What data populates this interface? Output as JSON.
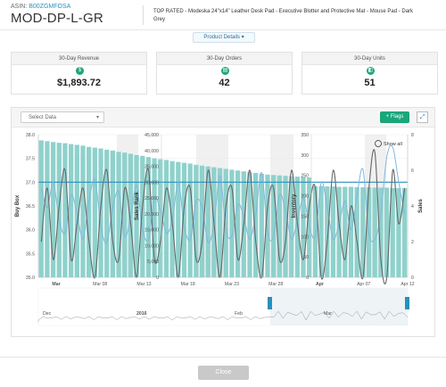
{
  "header": {
    "asin_label": "ASIN:",
    "asin_value": "B00ZGMFOSA",
    "sku": "MOD-DP-L-GR",
    "product_title": "TOP RATED - Modeska 24\"x14\" Leather Desk Pad - Executive Blotter and Protective Mat - Mouse Pad - Dark Grey",
    "close_icon": "close-icon"
  },
  "product_details_button": "Product Details ▾",
  "metrics": [
    {
      "label": "30-Day Revenue",
      "value": "$1,893.72",
      "icon": "$"
    },
    {
      "label": "30-Day Orders",
      "value": "42",
      "icon": "▤"
    },
    {
      "label": "30-Day Units",
      "value": "51",
      "icon": "◧"
    }
  ],
  "toolbar": {
    "select_placeholder": "Select Data",
    "flags_label": "Flags",
    "expand_icon": "expand-icon"
  },
  "show_all": "Show all",
  "colors": {
    "accent": "#1aa67b",
    "bars": "#8fd1cc",
    "buybox_line": "#2a8fbd",
    "rank_line": "#7fb8e0",
    "sales_line": "#666666"
  },
  "chart_data": {
    "type": "bar",
    "axis_titles": {
      "buy_box": "Buy Box",
      "sales_rank": "Sales Rank",
      "inventory": "Inventory",
      "sales": "Sales"
    },
    "y_buy_box": {
      "ticks": [
        "38.0",
        "37.5",
        "37.0",
        "36.5",
        "36.0",
        "35.5",
        "35.0"
      ],
      "range": [
        35.0,
        38.0
      ]
    },
    "y_sales_rank": {
      "ticks": [
        "45,000",
        "40,000",
        "35,000",
        "30,000",
        "25,000",
        "20,000",
        "15,000",
        "10,000",
        "5,000",
        "0"
      ],
      "range": [
        0,
        45000
      ]
    },
    "y_inventory": {
      "ticks": [
        "350",
        "300",
        "250",
        "200",
        "150",
        "100",
        "50",
        "0"
      ],
      "range": [
        0,
        350
      ]
    },
    "y_sales": {
      "ticks": [
        "8",
        "6",
        "4",
        "2",
        "0"
      ],
      "range": [
        0,
        8
      ]
    },
    "x_ticks": [
      "Mar",
      "Mar 08",
      "Mar 13",
      "Mar 18",
      "Mar 23",
      "Mar 28",
      "Apr",
      "Apr 07",
      "Apr 12"
    ],
    "inventory_bars": [
      336,
      334,
      332,
      330,
      329,
      327,
      325,
      323,
      320,
      318,
      316,
      313,
      311,
      308,
      306,
      303,
      300,
      298,
      295,
      292,
      290,
      288,
      285,
      283,
      281,
      279,
      276,
      274,
      272,
      270,
      268,
      266,
      264,
      262,
      260,
      258,
      256,
      254,
      252,
      251,
      250,
      249,
      248,
      247,
      246,
      245,
      224,
      224,
      223,
      223,
      222,
      222,
      222,
      221,
      221,
      221,
      220,
      220,
      220,
      219,
      219,
      219
    ],
    "buy_box": {
      "value": 37.0,
      "end_value": 37.0
    },
    "sales_series": [
      2,
      5,
      1,
      4,
      6,
      1,
      3,
      5,
      2,
      0,
      4,
      6,
      2,
      1,
      5,
      3,
      0,
      4,
      6,
      1,
      2,
      5,
      3,
      0,
      4,
      5,
      1,
      2,
      6,
      3,
      0,
      4,
      5,
      1,
      3,
      6,
      2,
      0,
      4,
      5,
      1,
      2,
      6,
      3,
      1,
      4,
      5,
      0,
      2,
      6,
      3,
      1,
      4,
      2,
      0,
      5,
      7,
      1,
      0,
      6,
      3,
      5
    ],
    "sales_rank_series": [
      28000,
      22000,
      30000,
      18000,
      14000,
      26000,
      20000,
      12000,
      24000,
      31000,
      16000,
      11000,
      22000,
      27000,
      13000,
      19000,
      29000,
      15000,
      12000,
      25000,
      21000,
      14000,
      18000,
      30000,
      16000,
      12000,
      24000,
      22000,
      11000,
      17000,
      32000,
      15000,
      13000,
      23000,
      19000,
      12000,
      20000,
      33000,
      14000,
      13000,
      26000,
      21000,
      12000,
      18000,
      25000,
      16000,
      13000,
      30000,
      22000,
      12000,
      17000,
      24000,
      15000,
      26000,
      34000,
      14000,
      12000,
      20000,
      38000,
      41000,
      30000,
      20000
    ],
    "navigator": {
      "ticks": [
        "Dec",
        "2016",
        "Feb",
        "Mar"
      ]
    }
  }
}
